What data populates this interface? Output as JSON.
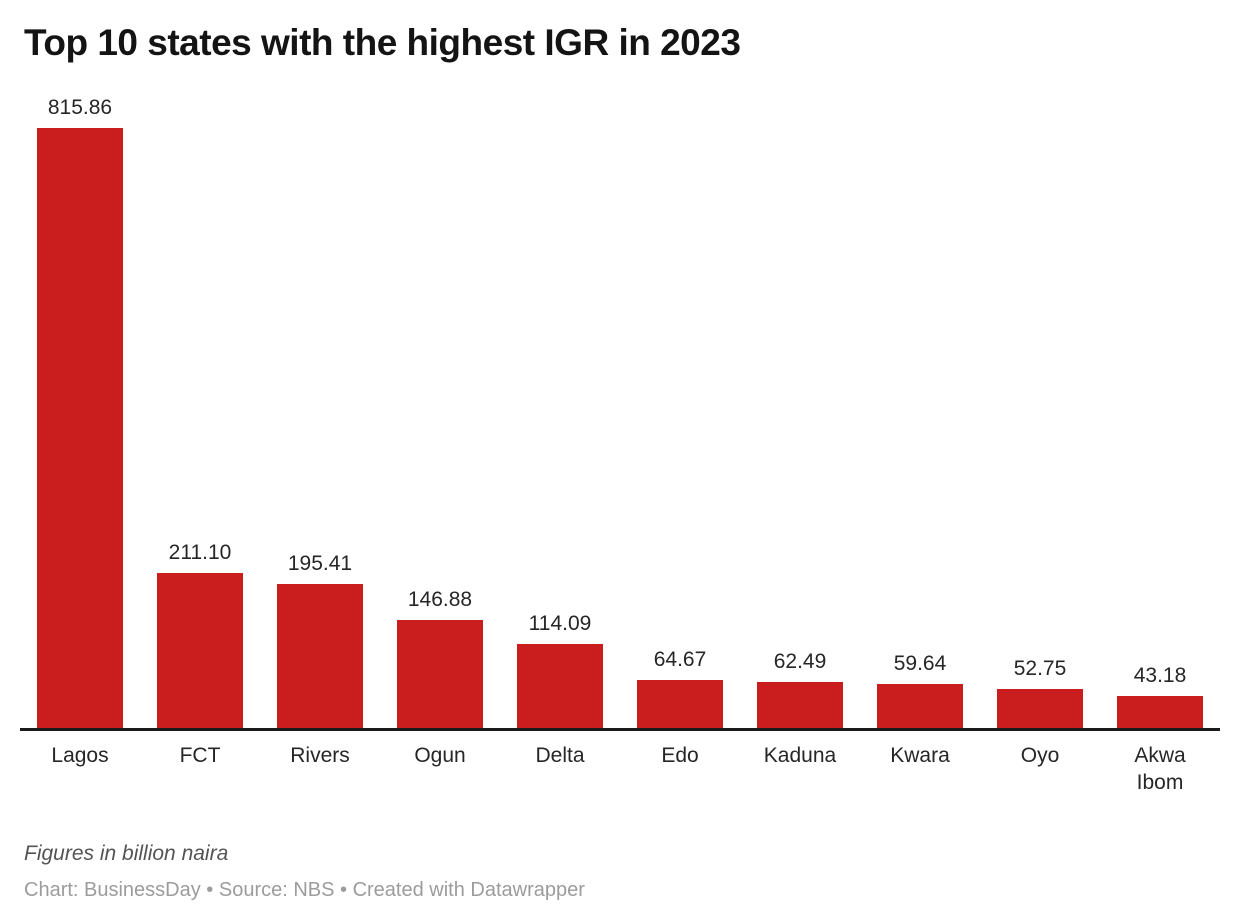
{
  "title": "Top 10 states with the highest IGR in 2023",
  "footer": {
    "note": "Figures in billion naira",
    "credit": "Chart: BusinessDay • Source: NBS • Created with Datawrapper"
  },
  "colors": {
    "background": "#ffffff",
    "bar": "#c91e1d",
    "title": "#141414",
    "label": "#262626",
    "axis": "#1a1a1a",
    "note": "#545454",
    "credit": "#9c9c9c"
  },
  "chart_data": {
    "type": "bar",
    "title": "Top 10 states with the highest IGR in 2023",
    "categories": [
      "Lagos",
      "FCT",
      "Rivers",
      "Ogun",
      "Delta",
      "Edo",
      "Kaduna",
      "Kwara",
      "Oyo",
      "Akwa Ibom"
    ],
    "values": [
      815.86,
      211.1,
      195.41,
      146.88,
      114.09,
      64.67,
      62.49,
      59.64,
      52.75,
      43.18
    ],
    "value_labels": [
      "815.86",
      "211.10",
      "195.41",
      "146.88",
      "114.09",
      "64.67",
      "62.49",
      "59.64",
      "52.75",
      "43.18"
    ],
    "xlabel": "",
    "ylabel": "",
    "unit": "billion naira",
    "ylim": [
      0,
      815.86
    ],
    "grid": false,
    "legend": false,
    "bar_color": "#c91e1d",
    "value_labels_position": "above-bar",
    "category_labels_position": "below-axis"
  }
}
